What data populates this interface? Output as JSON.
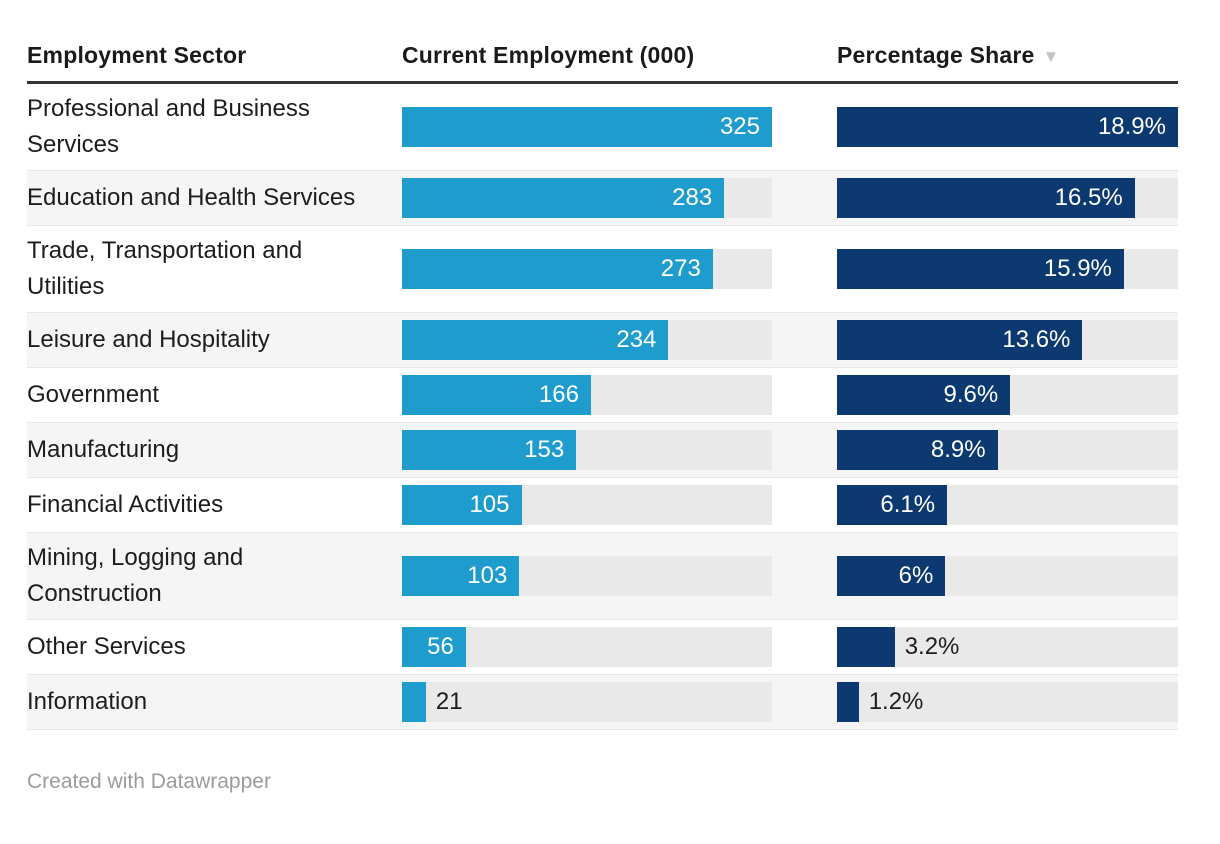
{
  "table": {
    "columns": [
      {
        "label": "Employment Sector"
      },
      {
        "label": "Current Employment (000)"
      },
      {
        "label": "Percentage Share",
        "sort_icon": "▼"
      }
    ],
    "rows": [
      {
        "sector": "Professional and Business Services",
        "employment": 325,
        "employment_label": "325",
        "share": 18.9,
        "share_label": "18.9%"
      },
      {
        "sector": "Education and Health Services",
        "employment": 283,
        "employment_label": "283",
        "share": 16.5,
        "share_label": "16.5%"
      },
      {
        "sector": "Trade, Transportation and Utilities",
        "employment": 273,
        "employment_label": "273",
        "share": 15.9,
        "share_label": "15.9%"
      },
      {
        "sector": "Leisure and Hospitality",
        "employment": 234,
        "employment_label": "234",
        "share": 13.6,
        "share_label": "13.6%"
      },
      {
        "sector": "Government",
        "employment": 166,
        "employment_label": "166",
        "share": 9.6,
        "share_label": "9.6%"
      },
      {
        "sector": "Manufacturing",
        "employment": 153,
        "employment_label": "153",
        "share": 8.9,
        "share_label": "8.9%"
      },
      {
        "sector": "Financial Activities",
        "employment": 105,
        "employment_label": "105",
        "share": 6.1,
        "share_label": "6.1%"
      },
      {
        "sector": "Mining, Logging and Construction",
        "employment": 103,
        "employment_label": "103",
        "share": 6,
        "share_label": "6%"
      },
      {
        "sector": "Other Services",
        "employment": 56,
        "employment_label": "56",
        "share": 3.2,
        "share_label": "3.2%"
      },
      {
        "sector": "Information",
        "employment": 21,
        "employment_label": "21",
        "share": 1.2,
        "share_label": "1.2%"
      }
    ],
    "max_employment": 325,
    "max_share": 18.9
  },
  "chart_data": {
    "type": "table",
    "title": "",
    "columns": [
      "Employment Sector",
      "Current Employment (000)",
      "Percentage Share"
    ],
    "categories": [
      "Professional and Business Services",
      "Education and Health Services",
      "Trade, Transportation and Utilities",
      "Leisure and Hospitality",
      "Government",
      "Manufacturing",
      "Financial Activities",
      "Mining, Logging and Construction",
      "Other Services",
      "Information"
    ],
    "series": [
      {
        "name": "Current Employment (000)",
        "values": [
          325,
          283,
          273,
          234,
          166,
          153,
          105,
          103,
          56,
          21
        ]
      },
      {
        "name": "Percentage Share",
        "values": [
          18.9,
          16.5,
          15.9,
          13.6,
          9.6,
          8.9,
          6.1,
          6,
          3.2,
          1.2
        ]
      }
    ],
    "sorted_by": "Percentage Share descending",
    "bar_scale": {
      "employment_max": 325,
      "share_max": 18.9
    }
  },
  "colors": {
    "employment_bar": "#1e9ccd",
    "share_bar": "#0c3a70",
    "bar_track": "#e9e9e9",
    "header_text": "#1a1a1a",
    "body_text": "#1d1d1d",
    "shaded_row": "#f5f5f5",
    "sort_icon": "#c4c4c4",
    "footer_text": "#9b9b9b"
  },
  "footer": {
    "credit": "Created with Datawrapper"
  }
}
